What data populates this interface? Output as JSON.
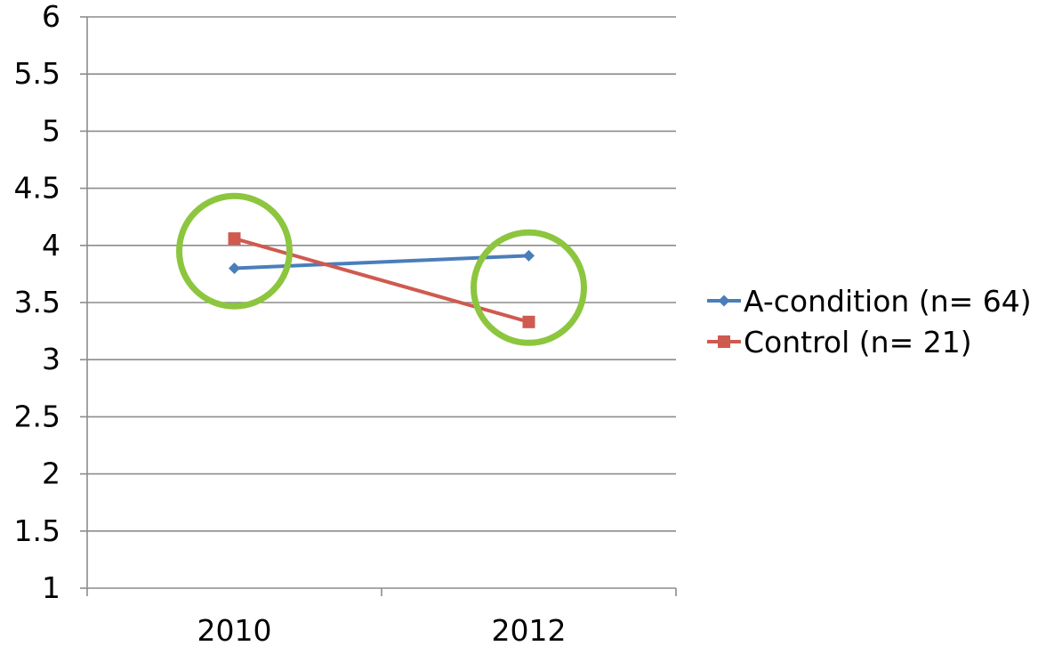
{
  "chart_data": {
    "type": "line",
    "title": "",
    "xlabel": "",
    "ylabel": "",
    "categories": [
      "2010",
      "2012"
    ],
    "ylim": [
      1,
      6
    ],
    "yticks": [
      1,
      1.5,
      2,
      2.5,
      3,
      3.5,
      4,
      4.5,
      5,
      5.5,
      6
    ],
    "ytick_labels": [
      "1",
      "1.5",
      "2",
      "2.5",
      "3",
      "3.5",
      "4",
      "4.5",
      "5",
      "5.5",
      "6"
    ],
    "grid": true,
    "legend_position": "right",
    "series": [
      {
        "name": "A-condition (n= 64)",
        "values": [
          3.8,
          3.91
        ],
        "color": "#4a7ebb",
        "marker": "diamond"
      },
      {
        "name": "Control (n= 21)",
        "values": [
          4.06,
          3.33
        ],
        "color": "#cf5a50",
        "marker": "square"
      }
    ],
    "annotations": [
      {
        "type": "circle",
        "x": "2010",
        "y": 3.95,
        "color": "#8cc63e"
      },
      {
        "type": "circle",
        "x": "2012",
        "y": 3.63,
        "color": "#8cc63e"
      }
    ]
  }
}
